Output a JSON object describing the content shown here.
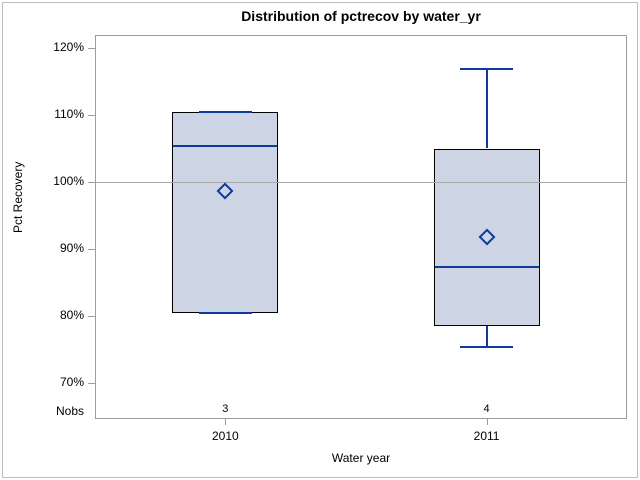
{
  "figure": {
    "title": "Distribution of pctrecov by water_yr"
  },
  "chart_data": {
    "type": "boxplot",
    "title": "Distribution of pctrecov by water_yr",
    "xlabel": "Water year",
    "ylabel": "Pct Recovery",
    "nobs_row_label": "Nobs",
    "ylim": [
      67,
      122
    ],
    "yticks": [
      {
        "value": 120,
        "label": "120%"
      },
      {
        "value": 110,
        "label": "110%"
      },
      {
        "value": 100,
        "label": "100%"
      },
      {
        "value": 90,
        "label": "90%"
      },
      {
        "value": 80,
        "label": "80%"
      },
      {
        "value": 70,
        "label": "70%"
      }
    ],
    "reference_line_value": 100,
    "grid": "single-reference-line",
    "legend": "none",
    "categories": [
      "2010",
      "2011"
    ],
    "series": [
      {
        "category": "2010",
        "nobs": "3",
        "whisker_low": 80.4,
        "q1": 80.4,
        "median": 105.4,
        "q3": 110.4,
        "whisker_high": 110.4,
        "mean": 98.7
      },
      {
        "category": "2011",
        "nobs": "4",
        "whisker_low": 75.4,
        "q1": 78.5,
        "median": 87.3,
        "q3": 105.0,
        "whisker_high": 116.9,
        "mean": 91.8
      }
    ],
    "colors": {
      "box_fill": "#cdd5e4",
      "box_border": "#000000",
      "line_blue": "#0e3a9c",
      "reference_line": "#a8a8a8",
      "frame": "#9c9c9c"
    }
  }
}
